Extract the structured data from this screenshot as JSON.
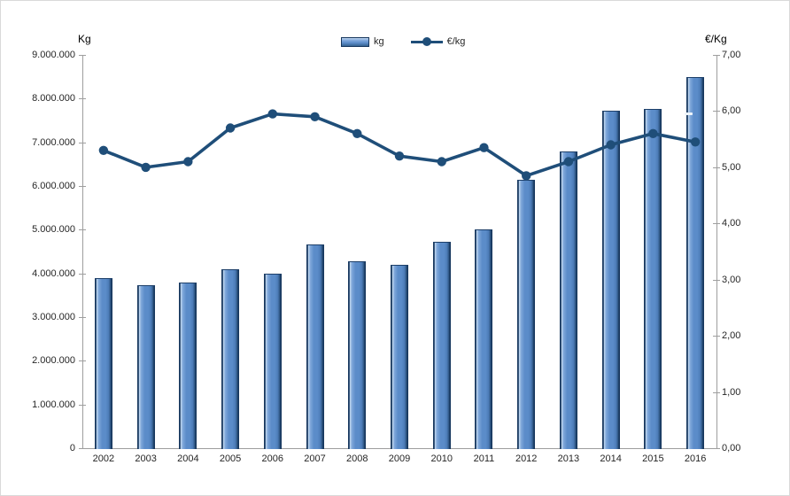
{
  "chart_data": {
    "type": "bar",
    "subtype": "combo-bar-line-dual-axis",
    "categories": [
      "2002",
      "2003",
      "2004",
      "2005",
      "2006",
      "2007",
      "2008",
      "2009",
      "2010",
      "2011",
      "2012",
      "2013",
      "2014",
      "2015",
      "2016"
    ],
    "series": [
      {
        "name": "kg",
        "type": "bar",
        "axis": "left",
        "values": [
          3890000,
          3730000,
          3800000,
          4100000,
          4000000,
          4670000,
          4280000,
          4190000,
          4730000,
          5000000,
          6150000,
          6800000,
          7730000,
          7760000,
          8490000
        ]
      },
      {
        "name": "€/kg",
        "type": "line",
        "axis": "right",
        "values": [
          5.3,
          5.0,
          5.1,
          5.7,
          5.95,
          5.9,
          5.6,
          5.2,
          5.1,
          5.35,
          4.85,
          5.1,
          5.4,
          5.6,
          5.45
        ]
      }
    ],
    "left_axis": {
      "title": "Kg",
      "min": 0,
      "max": 9000000,
      "step": 1000000,
      "tick_labels": [
        "0",
        "1.000.000",
        "2.000.000",
        "3.000.000",
        "4.000.000",
        "5.000.000",
        "6.000.000",
        "7.000.000",
        "8.000.000",
        "9.000.000"
      ]
    },
    "right_axis": {
      "title": "€/Kg",
      "min": 0,
      "max": 7,
      "step": 1,
      "tick_labels": [
        "0,00",
        "1,00",
        "2,00",
        "3,00",
        "4,00",
        "5,00",
        "6,00",
        "7,00"
      ]
    },
    "legend": [
      {
        "label": "kg",
        "swatch": "bar"
      },
      {
        "label": "€/kg",
        "swatch": "line-marker"
      }
    ],
    "grid": "off",
    "legend_position": "top-center",
    "colors": {
      "bar_main": "#5B8CC9",
      "bar_edge": "#17375E",
      "bar_highlight": "#BDD5EF",
      "line": "#1F4E79",
      "axis": "#9E9E9E",
      "text": "#262626"
    }
  }
}
